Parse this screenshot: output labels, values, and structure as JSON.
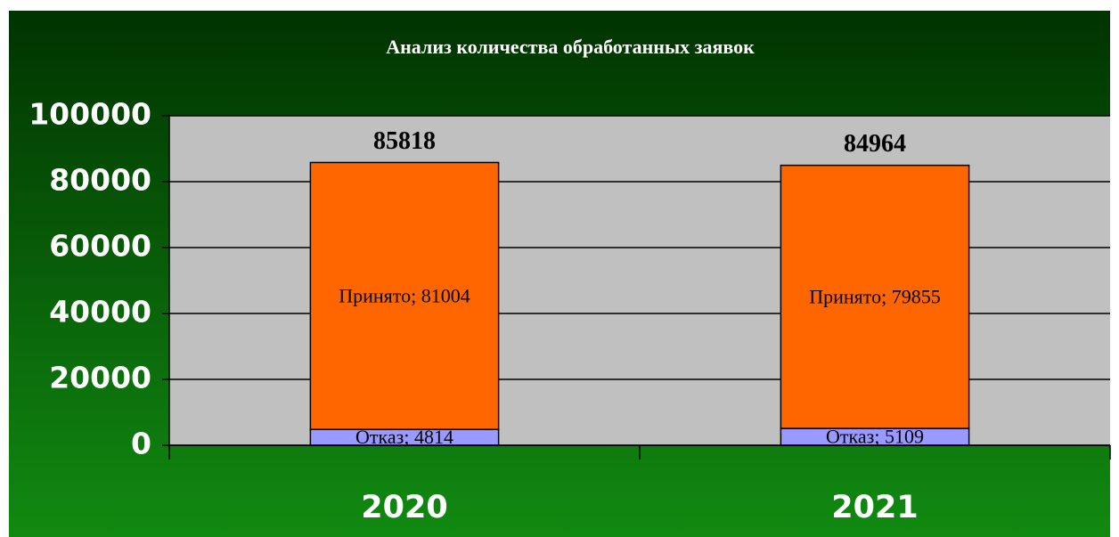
{
  "chart_data": {
    "type": "stacked_bar",
    "title": "Анализ количества обработанных заявок",
    "categories": [
      "2020",
      "2021"
    ],
    "series": [
      {
        "color": "#9999ff",
        "values": [
          4814,
          5109
        ],
        "value_labels": [
          "Отказ; 4814",
          "Отказ; 5109"
        ]
      },
      {
        "color": "#ff6600",
        "values": [
          81004,
          79855
        ],
        "value_labels": [
          "Принято; 81004",
          "Принято; 79855"
        ]
      }
    ],
    "totals": [
      85818,
      84964
    ],
    "ylim": [
      0,
      100000
    ],
    "yticks": [
      0,
      20000,
      40000,
      60000,
      80000,
      100000
    ],
    "grid": true
  }
}
